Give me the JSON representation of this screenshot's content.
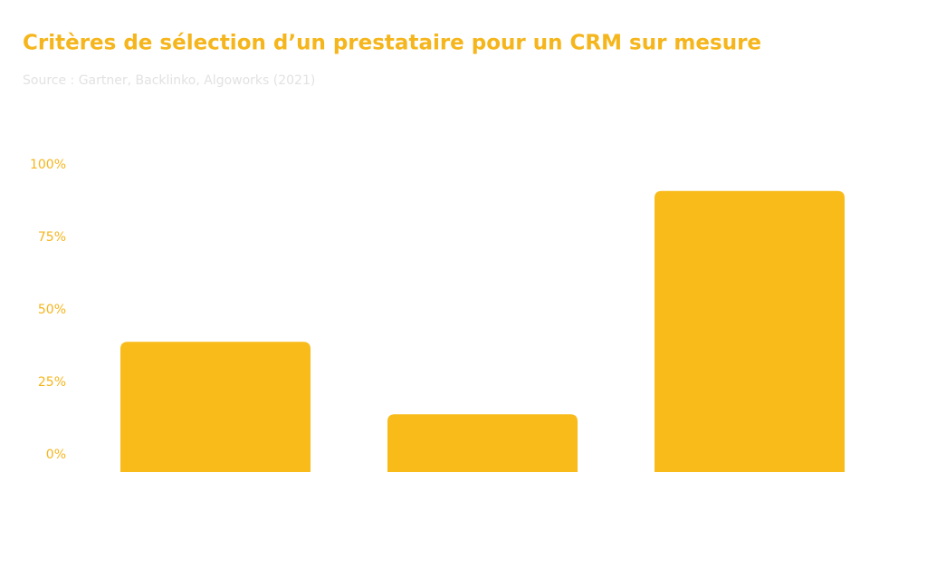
{
  "chart_data": {
    "type": "bar",
    "title": "Critères de sélection d’un prestataire pour un CRM sur mesure",
    "subtitle": "Source : Gartner, Backlinko, Algoworks (2021)",
    "categories": [
      null,
      null,
      null
    ],
    "values": [
      39,
      14,
      91
    ],
    "color": "#f8bb1a",
    "ylim": [
      0,
      100
    ],
    "yticks": [
      {
        "value": 0,
        "label": "0%"
      },
      {
        "value": 25,
        "label": "25%"
      },
      {
        "value": 50,
        "label": "50%"
      },
      {
        "value": 75,
        "label": "75%"
      },
      {
        "value": 100,
        "label": "100%"
      }
    ],
    "grid": false
  }
}
